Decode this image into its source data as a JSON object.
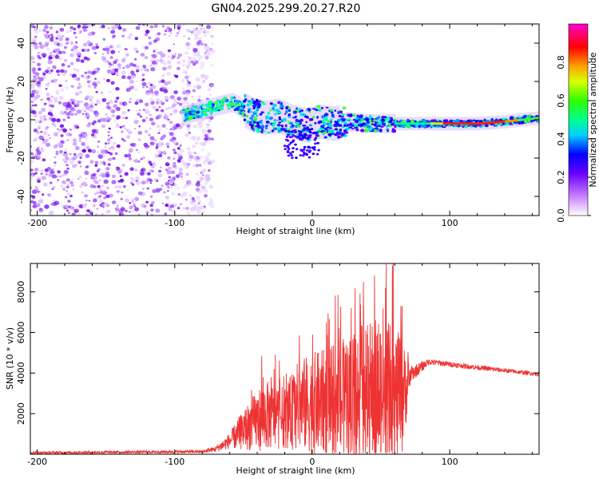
{
  "title": "GN04.2025.299.20.27.R20",
  "chart_data": [
    {
      "type": "heatmap",
      "name": "spectrogram",
      "xlabel": "Height of straight line (km)",
      "ylabel": "Frequency (Hz)",
      "xlim": [
        -205,
        165
      ],
      "ylim": [
        -50,
        50
      ],
      "xticks": [
        -200,
        -100,
        0,
        100
      ],
      "yticks": [
        -40,
        -20,
        0,
        20,
        40
      ],
      "noise_region_x": [
        -205,
        -72
      ],
      "signal_track": [
        {
          "x": -95,
          "f": 2
        },
        {
          "x": -85,
          "f": 4
        },
        {
          "x": -75,
          "f": 6
        },
        {
          "x": -65,
          "f": 8
        },
        {
          "x": -58,
          "f": 9
        },
        {
          "x": -52,
          "f": 6
        },
        {
          "x": -45,
          "f": 3
        },
        {
          "x": -35,
          "f": 1
        },
        {
          "x": -25,
          "f": 2
        },
        {
          "x": -15,
          "f": -1
        },
        {
          "x": -5,
          "f": -3
        },
        {
          "x": 5,
          "f": -1
        },
        {
          "x": 15,
          "f": -2
        },
        {
          "x": 25,
          "f": -1
        },
        {
          "x": 40,
          "f": -2
        },
        {
          "x": 60,
          "f": -2
        },
        {
          "x": 80,
          "f": -2
        },
        {
          "x": 100,
          "f": -2
        },
        {
          "x": 120,
          "f": -2
        },
        {
          "x": 140,
          "f": -1
        },
        {
          "x": 165,
          "f": 1
        }
      ],
      "colorbar": {
        "label": "Normalized spectral amplitude",
        "range": [
          0,
          1
        ],
        "ticks": [
          "0.0",
          "0.2",
          "0.4",
          "0.6",
          "0.8"
        ],
        "colors": [
          "#ffffff",
          "#8a00ff",
          "#0000ff",
          "#00ffff",
          "#00ff00",
          "#ffff00",
          "#ff0000",
          "#ff00cc"
        ]
      }
    },
    {
      "type": "line",
      "name": "snr",
      "xlabel": "Height of straight line (km)",
      "ylabel": "SNR (10 * v/v)",
      "xlim": [
        -205,
        165
      ],
      "ylim": [
        0,
        9400
      ],
      "xticks": [
        -200,
        -100,
        0,
        100
      ],
      "yticks": [
        2000,
        4000,
        6000,
        8000
      ],
      "color": "#ee3333",
      "envelope": [
        {
          "x": -205,
          "base": 50,
          "amp": 120
        },
        {
          "x": -80,
          "base": 100,
          "amp": 150
        },
        {
          "x": -70,
          "base": 200,
          "amp": 300
        },
        {
          "x": -60,
          "base": 500,
          "amp": 800
        },
        {
          "x": -50,
          "base": 800,
          "amp": 2000
        },
        {
          "x": -35,
          "base": 1200,
          "amp": 3500
        },
        {
          "x": -20,
          "base": 1200,
          "amp": 3000
        },
        {
          "x": -10,
          "base": 1500,
          "amp": 4500
        },
        {
          "x": 0,
          "base": 1500,
          "amp": 5000
        },
        {
          "x": 15,
          "base": 1500,
          "amp": 5500
        },
        {
          "x": 30,
          "base": 1500,
          "amp": 6500
        },
        {
          "x": 45,
          "base": 1500,
          "amp": 7500
        },
        {
          "x": 55,
          "base": 1500,
          "amp": 7800
        },
        {
          "x": 65,
          "base": 1500,
          "amp": 6000
        },
        {
          "x": 72,
          "base": 3800,
          "amp": 800
        },
        {
          "x": 85,
          "base": 4500,
          "amp": 300
        },
        {
          "x": 110,
          "base": 4300,
          "amp": 250
        },
        {
          "x": 165,
          "base": 3900,
          "amp": 200
        }
      ],
      "spikes": [
        {
          "x": -37,
          "y": 4850
        },
        {
          "x": -28,
          "y": 4200
        },
        {
          "x": 0,
          "y": 5900
        },
        {
          "x": 10,
          "y": 6500
        },
        {
          "x": 28,
          "y": 7200
        },
        {
          "x": 37,
          "y": 8500
        },
        {
          "x": 45,
          "y": 8800
        },
        {
          "x": 53,
          "y": 8200
        },
        {
          "x": 58,
          "y": 9300
        },
        {
          "x": 65,
          "y": 7300
        }
      ]
    }
  ]
}
